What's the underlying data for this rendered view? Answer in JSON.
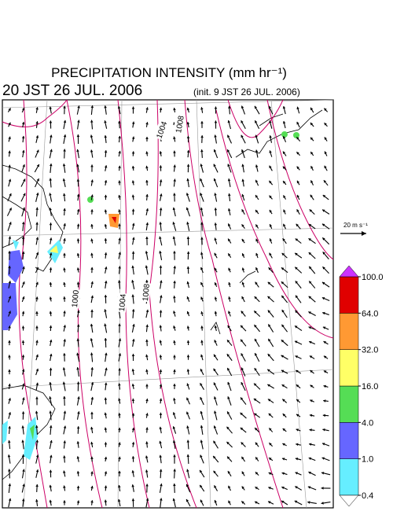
{
  "header": {
    "title": "PRECIPITATION INTENSITY (mm hr⁻¹)",
    "valid_time": "20 JST 26 JUL. 2006",
    "init_time": "(init. 9 JST 26 JUL. 2006)"
  },
  "vector_scale": "20 m s⁻¹",
  "contour_labels": [
    "1004",
    "1008",
    "1000",
    "1004",
    "1008"
  ],
  "colorbar": {
    "ticks": [
      0.4,
      {
        "value": 1,
        "label": "1.0"
      },
      {
        "value": 4,
        "label": "4.0"
      },
      {
        "value": 16,
        "label": "16.0"
      },
      {
        "value": 32,
        "label": "32.0"
      },
      {
        "value": 64,
        "label": "64.0"
      },
      {
        "value": 100,
        "label": "100.0"
      }
    ],
    "colors": [
      "#66eeff",
      "#6666ff",
      "#55dd55",
      "#ffff66",
      "#ff9933",
      "#e00000"
    ],
    "over_color": "#cc33ff",
    "under_color": "#ffffff"
  }
}
